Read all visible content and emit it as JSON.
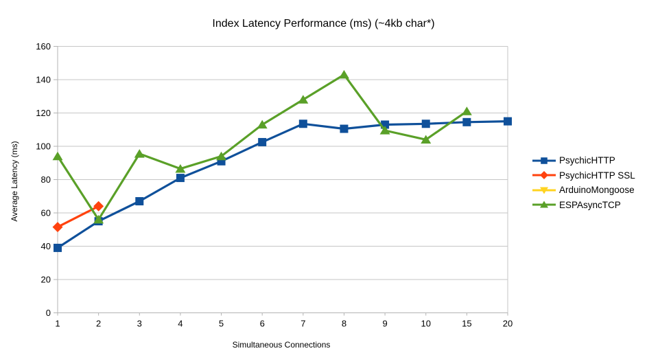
{
  "chart_data": {
    "type": "line",
    "title": "Index Latency Performance (ms) (~4kb char*)",
    "xlabel": "Simultaneous Connections",
    "ylabel": "Average Latency (ms)",
    "categories": [
      "1",
      "2",
      "3",
      "4",
      "5",
      "6",
      "7",
      "8",
      "9",
      "10",
      "15",
      "20"
    ],
    "ylim": [
      0,
      160
    ],
    "yticks": [
      0,
      20,
      40,
      60,
      80,
      100,
      120,
      140,
      160
    ],
    "grid": "horizontal",
    "legend_position": "right",
    "series": [
      {
        "name": "PsychicHTTP",
        "color": "#0F509A",
        "marker": "square",
        "values": [
          39,
          55,
          67,
          81,
          91,
          102.5,
          113.5,
          110.5,
          113,
          113.5,
          114.5,
          115
        ]
      },
      {
        "name": "PsychicHTTP SSL",
        "color": "#FF420E",
        "marker": "diamond",
        "values": [
          51.5,
          64,
          null,
          null,
          null,
          null,
          null,
          null,
          null,
          null,
          null,
          null
        ]
      },
      {
        "name": "ArduinoMongoose",
        "color": "#FFD320",
        "marker": "triangle-down",
        "values": [
          null,
          null,
          null,
          null,
          null,
          null,
          null,
          null,
          null,
          null,
          null,
          null
        ]
      },
      {
        "name": "ESPAsyncTCP",
        "color": "#5AA028",
        "marker": "triangle-up",
        "values": [
          94,
          56,
          95.5,
          86.5,
          94,
          113,
          128,
          143,
          109.5,
          104,
          121,
          null
        ]
      }
    ],
    "style_colors": {
      "grid": "#c6c6c6",
      "axis": "#b3b3b3",
      "text": "#000000",
      "background": "#ffffff"
    }
  }
}
